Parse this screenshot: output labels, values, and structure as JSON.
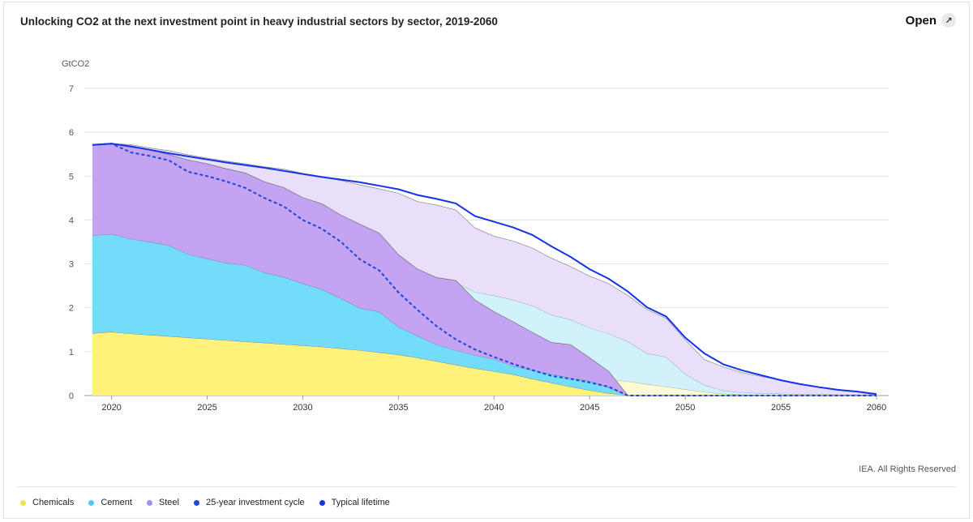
{
  "header": {
    "title": "Unlocking CO2 at the next investment point in heavy industrial sectors by sector, 2019-2060",
    "open_label": "Open",
    "open_icon": "expand-icon"
  },
  "footer": {
    "credit": "IEA. All Rights Reserved"
  },
  "chart_data": {
    "type": "area",
    "title": "Unlocking CO2 at the next investment point in heavy industrial sectors by sector, 2019-2060",
    "ylabel": "GtCO2",
    "xlabel": "",
    "xlim": [
      2019,
      2060
    ],
    "ylim": [
      0,
      7
    ],
    "yticks": [
      0,
      1,
      2,
      3,
      4,
      5,
      6,
      7
    ],
    "xticks": [
      2020,
      2025,
      2030,
      2035,
      2040,
      2045,
      2050,
      2055,
      2060
    ],
    "grid": true,
    "legend_position": "bottom",
    "x": [
      2019,
      2020,
      2021,
      2022,
      2023,
      2024,
      2025,
      2026,
      2027,
      2028,
      2029,
      2030,
      2031,
      2032,
      2033,
      2034,
      2035,
      2036,
      2037,
      2038,
      2039,
      2040,
      2041,
      2042,
      2043,
      2044,
      2045,
      2046,
      2047,
      2048,
      2049,
      2050,
      2051,
      2052,
      2053,
      2054,
      2055,
      2056,
      2057,
      2058,
      2059,
      2060
    ],
    "series": [
      {
        "name": "Chemicals",
        "color": "#fff27a",
        "kind": "stacked_area",
        "scenario": "25-year investment cycle",
        "values": [
          1.42,
          1.45,
          1.41,
          1.38,
          1.35,
          1.32,
          1.29,
          1.26,
          1.23,
          1.2,
          1.17,
          1.14,
          1.11,
          1.07,
          1.03,
          0.98,
          0.93,
          0.86,
          0.78,
          0.7,
          0.62,
          0.55,
          0.48,
          0.38,
          0.29,
          0.2,
          0.12,
          0.05,
          0,
          0,
          0,
          0,
          0,
          0,
          0,
          0,
          0,
          0,
          0,
          0,
          0,
          0
        ]
      },
      {
        "name": "Cement",
        "color": "#73dcfb",
        "kind": "stacked_area",
        "scenario": "25-year investment cycle",
        "values": [
          2.23,
          2.23,
          2.16,
          2.12,
          2.07,
          1.9,
          1.83,
          1.76,
          1.74,
          1.6,
          1.53,
          1.41,
          1.31,
          1.14,
          0.96,
          0.93,
          0.63,
          0.5,
          0.38,
          0.33,
          0.3,
          0.28,
          0.19,
          0.2,
          0.2,
          0.2,
          0.21,
          0.13,
          0,
          0,
          0,
          0,
          0,
          0,
          0,
          0,
          0,
          0,
          0,
          0,
          0,
          0
        ]
      },
      {
        "name": "Steel",
        "color": "#c4a4f2",
        "kind": "stacked_area",
        "scenario": "25-year investment cycle",
        "values": [
          2.06,
          2.06,
          2.09,
          2.1,
          2.07,
          2.15,
          2.16,
          2.15,
          2.1,
          2.07,
          2.04,
          1.96,
          1.95,
          1.9,
          1.91,
          1.79,
          1.65,
          1.52,
          1.53,
          1.59,
          1.26,
          1.08,
          1.01,
          0.86,
          0.72,
          0.76,
          0.53,
          0.37,
          0,
          0,
          0,
          0,
          0,
          0,
          0,
          0,
          0,
          0,
          0,
          0,
          0,
          0
        ]
      },
      {
        "name": "Chemicals",
        "color": "#fefcd2",
        "kind": "stacked_area",
        "scenario": "Typical lifetime",
        "values": [
          1.42,
          1.45,
          1.42,
          1.39,
          1.36,
          1.33,
          1.3,
          1.27,
          1.24,
          1.21,
          1.18,
          1.15,
          1.12,
          1.09,
          1.06,
          1.03,
          1.0,
          0.97,
          0.93,
          0.89,
          0.84,
          0.79,
          0.73,
          0.66,
          0.59,
          0.52,
          0.45,
          0.38,
          0.32,
          0.26,
          0.2,
          0.14,
          0.08,
          0.04,
          0.02,
          0.01,
          0.01,
          0.01,
          0.01,
          0.01,
          0.01,
          0.01
        ]
      },
      {
        "name": "Cement",
        "color": "#d1f2fb",
        "kind": "stacked_area",
        "scenario": "Typical lifetime",
        "values": [
          2.23,
          2.23,
          2.18,
          2.17,
          2.15,
          2.14,
          2.13,
          2.12,
          2.11,
          2.1,
          2.09,
          2.07,
          2.04,
          2.01,
          1.96,
          1.91,
          1.85,
          1.78,
          1.76,
          1.69,
          1.52,
          1.49,
          1.45,
          1.39,
          1.25,
          1.21,
          1.09,
          1.03,
          0.91,
          0.7,
          0.68,
          0.35,
          0.16,
          0.07,
          0.05,
          0.04,
          0.03,
          0.02,
          0.02,
          0.01,
          0.01,
          0.01
        ]
      },
      {
        "name": "Steel",
        "color": "#e9dffa",
        "kind": "stacked_area",
        "scenario": "Typical lifetime",
        "values": [
          2.06,
          2.06,
          2.12,
          2.08,
          2.07,
          2.02,
          1.98,
          1.95,
          1.93,
          1.9,
          1.89,
          1.84,
          1.82,
          1.8,
          1.78,
          1.77,
          1.76,
          1.67,
          1.65,
          1.65,
          1.46,
          1.35,
          1.34,
          1.31,
          1.29,
          1.21,
          1.18,
          1.14,
          1.05,
          1.0,
          0.88,
          0.78,
          0.58,
          0.54,
          0.45,
          0.38,
          0.32,
          0.24,
          0.17,
          0.12,
          0.08,
          0.03
        ]
      },
      {
        "name": "25-year investment cycle",
        "color": "#1b46d9",
        "kind": "line",
        "dash": true,
        "values": [
          5.71,
          5.74,
          5.54,
          5.46,
          5.36,
          5.1,
          5.0,
          4.88,
          4.73,
          4.5,
          4.31,
          4.0,
          3.8,
          3.5,
          3.1,
          2.85,
          2.35,
          1.95,
          1.58,
          1.28,
          1.05,
          0.88,
          0.72,
          0.58,
          0.45,
          0.38,
          0.3,
          0.2,
          0,
          0,
          0,
          0,
          0,
          0,
          0,
          0,
          0,
          0,
          0,
          0,
          0,
          0
        ]
      },
      {
        "name": "Typical lifetime",
        "color": "#1533e8",
        "kind": "line",
        "dash": false,
        "values": [
          5.71,
          5.74,
          5.68,
          5.6,
          5.52,
          5.45,
          5.38,
          5.31,
          5.25,
          5.19,
          5.12,
          5.05,
          4.98,
          4.92,
          4.86,
          4.78,
          4.7,
          4.57,
          4.48,
          4.38,
          4.09,
          3.96,
          3.83,
          3.66,
          3.4,
          3.16,
          2.88,
          2.66,
          2.37,
          2.01,
          1.8,
          1.32,
          0.96,
          0.71,
          0.57,
          0.46,
          0.35,
          0.26,
          0.19,
          0.13,
          0.09,
          0.03
        ]
      }
    ]
  },
  "legend": [
    {
      "label": "Chemicals",
      "color": "#f7e03c"
    },
    {
      "label": "Cement",
      "color": "#4fc9f0"
    },
    {
      "label": "Steel",
      "color": "#a88af0"
    },
    {
      "label": "25-year investment cycle",
      "color": "#1b46d9"
    },
    {
      "label": "Typical lifetime",
      "color": "#1533e8"
    }
  ]
}
